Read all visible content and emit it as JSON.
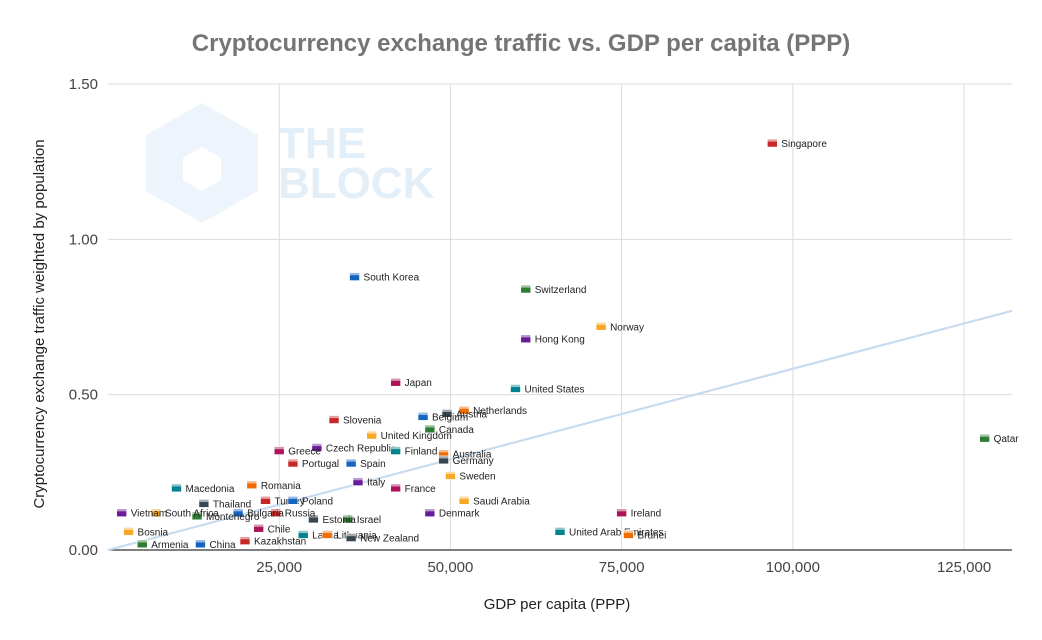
{
  "chart_data": {
    "type": "scatter",
    "title": "Cryptocurrency exchange traffic vs. GDP per capita (PPP)",
    "xlabel": "GDP per capita (PPP)",
    "ylabel": "Cryptocurrency exchange traffic weighted by population",
    "xlim": [
      0,
      132000
    ],
    "ylim": [
      0,
      1.5
    ],
    "x_ticks": [
      25000,
      50000,
      75000,
      100000,
      125000
    ],
    "x_tick_labels": [
      "25,000",
      "50,000",
      "75,000",
      "100,000",
      "125,000"
    ],
    "y_ticks": [
      0,
      0.5,
      1.0,
      1.5
    ],
    "y_tick_labels": [
      "0.00",
      "0.50",
      "1.00",
      "1.50"
    ],
    "grid": true,
    "trendline": {
      "x": [
        0,
        132000
      ],
      "y": [
        0.0,
        0.77
      ],
      "color": "#c9dcef"
    },
    "watermark": [
      "THE",
      "BLOCK"
    ],
    "points": [
      {
        "label": "Singapore",
        "x": 97000,
        "y": 1.31
      },
      {
        "label": "South Korea",
        "x": 36000,
        "y": 0.88
      },
      {
        "label": "Switzerland",
        "x": 61000,
        "y": 0.84
      },
      {
        "label": "Norway",
        "x": 72000,
        "y": 0.72
      },
      {
        "label": "Hong Kong",
        "x": 61000,
        "y": 0.68
      },
      {
        "label": "Japan",
        "x": 42000,
        "y": 0.54
      },
      {
        "label": "United States",
        "x": 59500,
        "y": 0.52
      },
      {
        "label": "Netherlands",
        "x": 52000,
        "y": 0.45
      },
      {
        "label": "Austria",
        "x": 49500,
        "y": 0.44
      },
      {
        "label": "Slovenia",
        "x": 33000,
        "y": 0.42
      },
      {
        "label": "Belgium",
        "x": 46000,
        "y": 0.43
      },
      {
        "label": "Canada",
        "x": 47000,
        "y": 0.39
      },
      {
        "label": "United Kingdom",
        "x": 38500,
        "y": 0.37
      },
      {
        "label": "Czech Republic",
        "x": 30500,
        "y": 0.33
      },
      {
        "label": "Greece",
        "x": 25000,
        "y": 0.32
      },
      {
        "label": "Finland",
        "x": 42000,
        "y": 0.32
      },
      {
        "label": "Australia",
        "x": 49000,
        "y": 0.31
      },
      {
        "label": "Germany",
        "x": 49000,
        "y": 0.29
      },
      {
        "label": "Portugal",
        "x": 27000,
        "y": 0.28
      },
      {
        "label": "Spain",
        "x": 35500,
        "y": 0.28
      },
      {
        "label": "Qatar",
        "x": 128000,
        "y": 0.36
      },
      {
        "label": "Sweden",
        "x": 50000,
        "y": 0.24
      },
      {
        "label": "Italy",
        "x": 36500,
        "y": 0.22
      },
      {
        "label": "France",
        "x": 42000,
        "y": 0.2
      },
      {
        "label": "Macedonia",
        "x": 10000,
        "y": 0.2
      },
      {
        "label": "Romania",
        "x": 21000,
        "y": 0.21
      },
      {
        "label": "Thailand",
        "x": 14000,
        "y": 0.15
      },
      {
        "label": "Turkey",
        "x": 23000,
        "y": 0.16
      },
      {
        "label": "Poland",
        "x": 27000,
        "y": 0.16
      },
      {
        "label": "Israel",
        "x": 35000,
        "y": 0.1
      },
      {
        "label": "Saudi Arabia",
        "x": 52000,
        "y": 0.16
      },
      {
        "label": "Denmark",
        "x": 47000,
        "y": 0.12
      },
      {
        "label": "Ireland",
        "x": 75000,
        "y": 0.12
      },
      {
        "label": "United Arab Emirates",
        "x": 66000,
        "y": 0.06
      },
      {
        "label": "Brunei",
        "x": 76000,
        "y": 0.05
      },
      {
        "label": "Estonia",
        "x": 30000,
        "y": 0.1
      },
      {
        "label": "Russia",
        "x": 24500,
        "y": 0.12
      },
      {
        "label": "Bulgaria",
        "x": 19000,
        "y": 0.12
      },
      {
        "label": "Montenegro",
        "x": 13000,
        "y": 0.11
      },
      {
        "label": "South Africa",
        "x": 7000,
        "y": 0.12
      },
      {
        "label": "Vietnam",
        "x": 2000,
        "y": 0.12
      },
      {
        "label": "Chile",
        "x": 22000,
        "y": 0.07
      },
      {
        "label": "Latvia",
        "x": 28500,
        "y": 0.05
      },
      {
        "label": "Lithuania",
        "x": 32000,
        "y": 0.05
      },
      {
        "label": "New Zealand",
        "x": 35500,
        "y": 0.04
      },
      {
        "label": "Kazakhstan",
        "x": 20000,
        "y": 0.03
      },
      {
        "label": "China",
        "x": 13500,
        "y": 0.02
      },
      {
        "label": "Armenia",
        "x": 5000,
        "y": 0.02
      },
      {
        "label": "Bosnia",
        "x": 3000,
        "y": 0.06
      }
    ]
  }
}
